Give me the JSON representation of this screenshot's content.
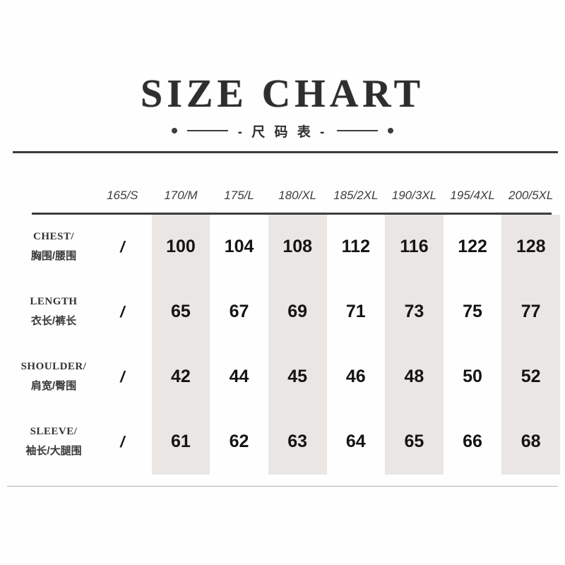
{
  "title": "SIZE CHART",
  "subtitle": "- 尺 码 表 -",
  "colors": {
    "stripe": "#e9e6e4",
    "line": "#3d3d3d",
    "text": "#2e2e2e",
    "value": "#141414",
    "faint-line": "#b5b2af"
  },
  "table": {
    "size_headers": [
      "165/S",
      "170/M",
      "175/L",
      "180/XL",
      "185/2XL",
      "190/3XL",
      "195/4XL",
      "200/5XL"
    ],
    "shaded_columns": [
      1,
      3,
      5,
      7
    ],
    "rows": [
      {
        "label_en": "CHEST/",
        "label_cn": "胸围/腰围",
        "values": [
          "/",
          "100",
          "104",
          "108",
          "112",
          "116",
          "122",
          "128"
        ]
      },
      {
        "label_en": "LENGTH",
        "label_cn": "衣长/裤长",
        "values": [
          "/",
          "65",
          "67",
          "69",
          "71",
          "73",
          "75",
          "77"
        ]
      },
      {
        "label_en": "SHOULDER/",
        "label_cn": "肩宽/臀围",
        "values": [
          "/",
          "42",
          "44",
          "45",
          "46",
          "48",
          "50",
          "52"
        ]
      },
      {
        "label_en": "SLEEVE/",
        "label_cn": "袖长/大腿围",
        "values": [
          "/",
          "61",
          "62",
          "63",
          "64",
          "65",
          "66",
          "68"
        ]
      }
    ]
  }
}
